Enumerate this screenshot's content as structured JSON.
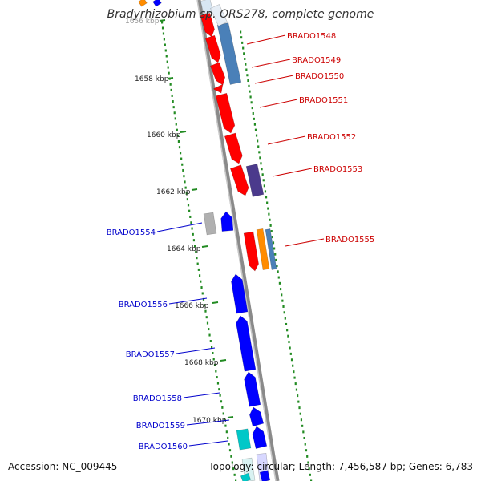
{
  "title": "Bradyrhizobium sp. ORS278, complete genome",
  "footer": {
    "accession": "Accession: NC_009445",
    "summary": "Topology: circular; Length: 7,456,587 bp; Genes: 6,783"
  },
  "colors": {
    "red_gene": "#ff0000",
    "blue_gene": "#0000ff",
    "steel_gene": "#4a80b8",
    "purple_gene": "#4b3a8c",
    "orange_gene": "#ff8c00",
    "gray_gene": "#b0b0b0",
    "cyan_gene": "#00c8c8",
    "tick_green": "#228b22",
    "backbone": "#8a8a8a",
    "label_red": "#cc0000",
    "label_blue": "#0000cc"
  },
  "kbp_ticks": [
    {
      "kbp": 1656,
      "label": "1656 kbp"
    },
    {
      "kbp": 1658,
      "label": "1658 kbp"
    },
    {
      "kbp": 1660,
      "label": "1660 kbp"
    },
    {
      "kbp": 1662,
      "label": "1662 kbp"
    },
    {
      "kbp": 1664,
      "label": "1664 kbp"
    },
    {
      "kbp": 1666,
      "label": "1666 kbp"
    },
    {
      "kbp": 1668,
      "label": "1668 kbp"
    },
    {
      "kbp": 1670,
      "label": "1670 kbp"
    }
  ],
  "forward_labels": [
    "BRADO1548",
    "BRADO1549",
    "BRADO1550",
    "BRADO1551",
    "BRADO1552",
    "BRADO1553",
    "BRADO1555"
  ],
  "reverse_labels": [
    "BRADO1554",
    "BRADO1556",
    "BRADO1557",
    "BRADO1558",
    "BRADO1559",
    "BRADO1560"
  ]
}
